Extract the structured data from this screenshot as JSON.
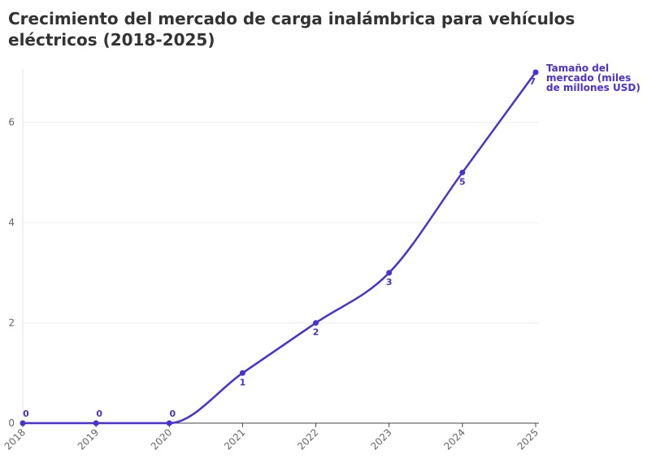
{
  "chart_data": {
    "type": "line",
    "title": "Crecimiento del mercado de carga inalámbrica para vehículos eléctricos (2018-2025)",
    "categories": [
      "2018",
      "2019",
      "2020",
      "2021",
      "2022",
      "2023",
      "2024",
      "2025"
    ],
    "series": [
      {
        "name": "Tamaño del mercado (miles de millones USD)",
        "color": "#4b2fd8",
        "values": [
          0,
          0,
          0,
          1,
          2,
          3,
          5,
          7
        ]
      }
    ],
    "ylim": [
      0,
      7
    ],
    "yticks": [
      0,
      2,
      4,
      6
    ],
    "grid": true
  }
}
